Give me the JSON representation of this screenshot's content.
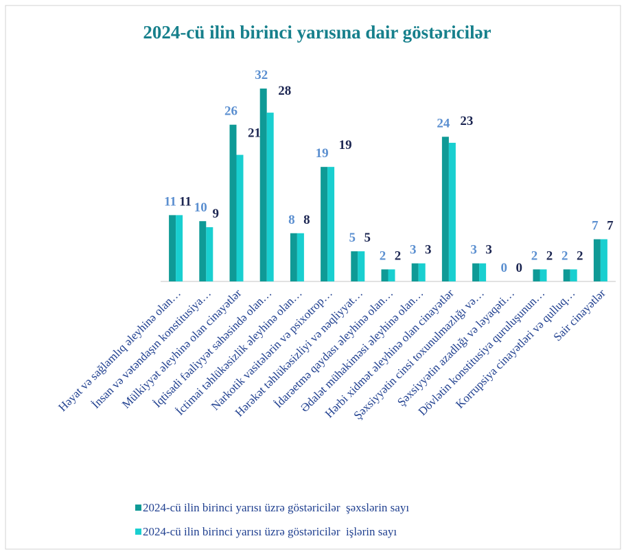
{
  "chart_data": {
    "type": "bar",
    "title": "2024-cü ilin birinci yarısına dair göstəricilər",
    "categories": [
      "Həyat və sağlamlıq əleyhinə olan…",
      "İnsan və vətəndaşın konstitusiya…",
      "Mülkiyyət əleyhinə olan cinayətlər",
      "İqtisadi fəaliyyət sahəsində olan…",
      "İctimai təhlükəsizlik əleyhinə olan…",
      "Narkotik vasitələrin və psixotrop…",
      "Hərəkət təhlükəsizliyi və nəqliyyat…",
      "İdarəetmə qaydası əleyhinə olan…",
      "Ədalət mühakiməsi əleyhinə olan…",
      "Hərbi xidmət əleyhinə olan cinayətlər",
      "Şəxsiyyətin cinsi toxunulmazlığı və…",
      "Şəxsiyyətin azadlığı və ləyaqəti…",
      "Dövlətin konstitusiya quruluşunun…",
      "Korrupsiya cinayətləri və qulluq…",
      "Sair cinayətlər"
    ],
    "series": [
      {
        "name": "2024-cü ilin birinci yarısı üzrə göstəricilər  şəxslərin sayı",
        "color": "#0f9a96",
        "label_color": "#5b8fd0",
        "values": [
          11,
          10,
          26,
          32,
          8,
          19,
          5,
          2,
          3,
          24,
          3,
          0,
          2,
          2,
          7
        ]
      },
      {
        "name": "2024-cü ilin birinci yarısı üzrə göstəricilər  işlərin sayı",
        "color": "#19cfd0",
        "label_color": "#1c2652",
        "values": [
          11,
          9,
          21,
          28,
          8,
          19,
          5,
          2,
          3,
          23,
          3,
          0,
          2,
          2,
          7
        ]
      }
    ]
  }
}
